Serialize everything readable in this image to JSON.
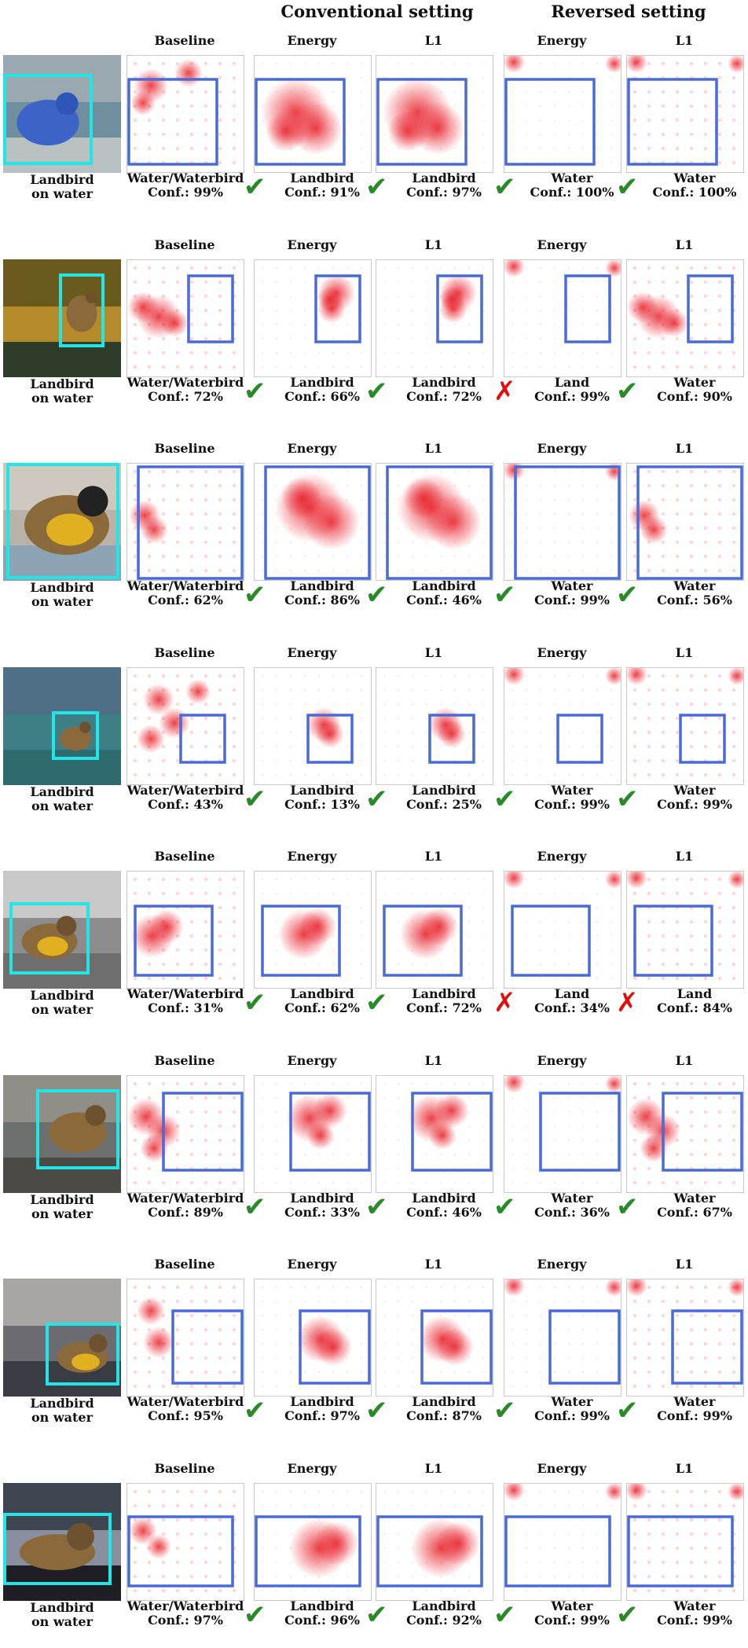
{
  "figure": {
    "section_titles": {
      "conventional": "Conventional setting",
      "reversed": "Reversed setting"
    },
    "columns": [
      "Baseline",
      "Energy",
      "L1",
      "Energy",
      "L1"
    ],
    "rows": [
      {
        "bird_label": [
          "Landbird",
          "on water"
        ],
        "background": "water",
        "panels": [
          {
            "pred": "Water/Waterbird",
            "conf": "Conf.: 99%",
            "mark": ""
          },
          {
            "pred": "Landbird",
            "conf": "Conf.: 91%",
            "mark": "check"
          },
          {
            "pred": "Landbird",
            "conf": "Conf.: 97%",
            "mark": "check"
          },
          {
            "pred": "Water",
            "conf": "Conf.: 100%",
            "mark": "check"
          },
          {
            "pred": "Water",
            "conf": "Conf.: 100%",
            "mark": "check"
          }
        ]
      },
      {
        "bird_label": [
          "Landbird",
          "on water"
        ],
        "background": "forest-water",
        "panels": [
          {
            "pred": "Water/Waterbird",
            "conf": "Conf.: 72%",
            "mark": ""
          },
          {
            "pred": "Landbird",
            "conf": "Conf.: 66%",
            "mark": "check"
          },
          {
            "pred": "Landbird",
            "conf": "Conf.: 72%",
            "mark": "check"
          },
          {
            "pred": "Land",
            "conf": "Conf.: 99%",
            "mark": "cross"
          },
          {
            "pred": "Water",
            "conf": "Conf.: 90%",
            "mark": "check"
          }
        ]
      },
      {
        "bird_label": [
          "Landbird",
          "on water"
        ],
        "background": "beach",
        "panels": [
          {
            "pred": "Water/Waterbird",
            "conf": "Conf.: 62%",
            "mark": ""
          },
          {
            "pred": "Landbird",
            "conf": "Conf.: 86%",
            "mark": "check"
          },
          {
            "pred": "Landbird",
            "conf": "Conf.: 46%",
            "mark": "check"
          },
          {
            "pred": "Water",
            "conf": "Conf.: 99%",
            "mark": "check"
          },
          {
            "pred": "Water",
            "conf": "Conf.: 56%",
            "mark": "check"
          }
        ]
      },
      {
        "bird_label": [
          "Landbird",
          "on water"
        ],
        "background": "sea",
        "panels": [
          {
            "pred": "Water/Waterbird",
            "conf": "Conf.: 43%",
            "mark": ""
          },
          {
            "pred": "Landbird",
            "conf": "Conf.: 13%",
            "mark": "check"
          },
          {
            "pred": "Landbird",
            "conf": "Conf.: 25%",
            "mark": "check"
          },
          {
            "pred": "Water",
            "conf": "Conf.: 99%",
            "mark": "check"
          },
          {
            "pred": "Water",
            "conf": "Conf.: 99%",
            "mark": "check"
          }
        ]
      },
      {
        "bird_label": [
          "Landbird",
          "on water"
        ],
        "background": "grayscale",
        "panels": [
          {
            "pred": "Water/Waterbird",
            "conf": "Conf.: 31%",
            "mark": ""
          },
          {
            "pred": "Landbird",
            "conf": "Conf.: 62%",
            "mark": "check"
          },
          {
            "pred": "Landbird",
            "conf": "Conf.: 72%",
            "mark": "check"
          },
          {
            "pred": "Land",
            "conf": "Conf.: 34%",
            "mark": "cross"
          },
          {
            "pred": "Land",
            "conf": "Conf.: 84%",
            "mark": "cross"
          }
        ]
      },
      {
        "bird_label": [
          "Landbird",
          "on water"
        ],
        "background": "lake",
        "panels": [
          {
            "pred": "Water/Waterbird",
            "conf": "Conf.: 89%",
            "mark": ""
          },
          {
            "pred": "Landbird",
            "conf": "Conf.: 33%",
            "mark": "check"
          },
          {
            "pred": "Landbird",
            "conf": "Conf.: 46%",
            "mark": "check"
          },
          {
            "pred": "Water",
            "conf": "Conf.: 36%",
            "mark": "check"
          },
          {
            "pred": "Water",
            "conf": "Conf.: 67%",
            "mark": "check"
          }
        ]
      },
      {
        "bird_label": [
          "Landbird",
          "on water"
        ],
        "background": "rocks",
        "panels": [
          {
            "pred": "Water/Waterbird",
            "conf": "Conf.: 95%",
            "mark": ""
          },
          {
            "pred": "Landbird",
            "conf": "Conf.: 97%",
            "mark": "check"
          },
          {
            "pred": "Landbird",
            "conf": "Conf.: 87%",
            "mark": "check"
          },
          {
            "pred": "Water",
            "conf": "Conf.: 99%",
            "mark": "check"
          },
          {
            "pred": "Water",
            "conf": "Conf.: 99%",
            "mark": "check"
          }
        ]
      },
      {
        "bird_label": [
          "Landbird",
          "on water"
        ],
        "background": "sunset",
        "panels": [
          {
            "pred": "Water/Waterbird",
            "conf": "Conf.: 97%",
            "mark": ""
          },
          {
            "pred": "Landbird",
            "conf": "Conf.: 96%",
            "mark": "check"
          },
          {
            "pred": "Landbird",
            "conf": "Conf.: 92%",
            "mark": "check"
          },
          {
            "pred": "Water",
            "conf": "Conf.: 99%",
            "mark": "check"
          },
          {
            "pred": "Water",
            "conf": "Conf.: 99%",
            "mark": "check"
          }
        ]
      }
    ]
  },
  "colors": {
    "bbox": "#4a6ad6",
    "bird_bbox": "#22e6e6",
    "heat": "#e8202a",
    "check": "#2a8a2a",
    "cross": "#e01010"
  },
  "icons": {
    "check": "check-mark-icon",
    "cross": "cross-mark-icon"
  }
}
